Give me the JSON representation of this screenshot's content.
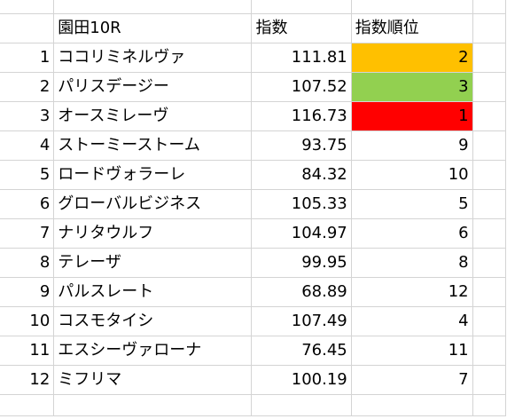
{
  "sheet": {
    "header": {
      "c1": "園田10R",
      "c2": "指数",
      "c3": "指数順位"
    },
    "rows": [
      {
        "n": "1",
        "name": "ココリミネルヴァ",
        "index": "111.81",
        "rank": "2",
        "rank_bg": "#ffc000"
      },
      {
        "n": "2",
        "name": "パリスデージー",
        "index": "107.52",
        "rank": "3",
        "rank_bg": "#92d050"
      },
      {
        "n": "3",
        "name": "オースミレーヴ",
        "index": "116.73",
        "rank": "1",
        "rank_bg": "#ff0000"
      },
      {
        "n": "4",
        "name": "ストーミーストーム",
        "index": "93.75",
        "rank": "9",
        "rank_bg": ""
      },
      {
        "n": "5",
        "name": "ロードヴォラーレ",
        "index": "84.32",
        "rank": "10",
        "rank_bg": ""
      },
      {
        "n": "6",
        "name": "グローバルビジネス",
        "index": "105.33",
        "rank": "5",
        "rank_bg": ""
      },
      {
        "n": "7",
        "name": "ナリタウルフ",
        "index": "104.97",
        "rank": "6",
        "rank_bg": ""
      },
      {
        "n": "8",
        "name": "テレーザ",
        "index": "99.95",
        "rank": "8",
        "rank_bg": ""
      },
      {
        "n": "9",
        "name": "パルスレート",
        "index": "68.89",
        "rank": "12",
        "rank_bg": ""
      },
      {
        "n": "10",
        "name": "コスモタイシ",
        "index": "107.49",
        "rank": "4",
        "rank_bg": ""
      },
      {
        "n": "11",
        "name": "エスシーヴァローナ",
        "index": "76.45",
        "rank": "11",
        "rank_bg": ""
      },
      {
        "n": "12",
        "name": "ミフリマ",
        "index": "100.19",
        "rank": "7",
        "rank_bg": ""
      }
    ]
  }
}
